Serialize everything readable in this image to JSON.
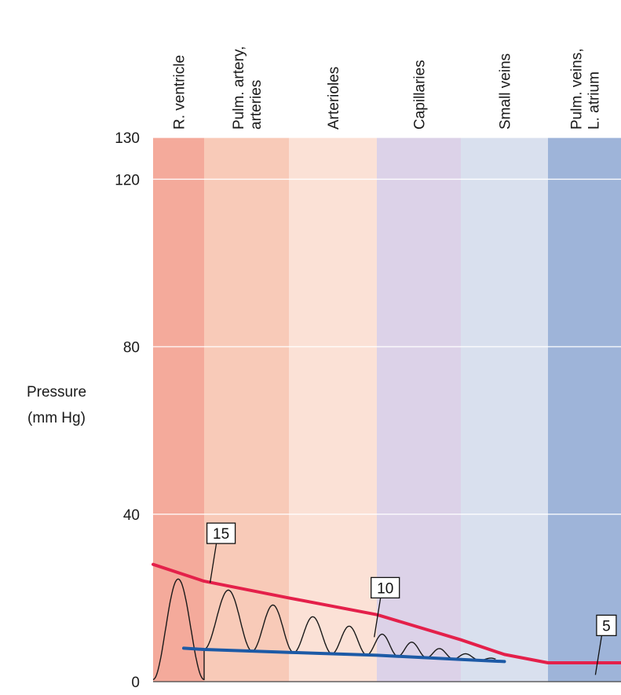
{
  "chart_data": {
    "type": "line",
    "ylabel": "Pressure",
    "ylabel_unit": "(mm Hg)",
    "yticks": [
      0,
      40,
      80,
      120,
      130
    ],
    "ylim": [
      0,
      130
    ],
    "regions": [
      {
        "label": "R. ventricle",
        "color": "#f4aa9b"
      },
      {
        "label": "Pulm. artery,|arteries",
        "color": "#f8cab8"
      },
      {
        "label": "Arterioles",
        "color": "#fbe1d6"
      },
      {
        "label": "Capillaries",
        "color": "#dcd2e8"
      },
      {
        "label": "Small veins",
        "color": "#d9e0ee"
      },
      {
        "label": "Pulm. veins,|L. atrium",
        "color": "#9eb4d9"
      }
    ],
    "series": [
      {
        "color": "#e4204a",
        "x": [
          0,
          1,
          2,
          3,
          4,
          4.5,
          5,
          5.5,
          6
        ],
        "values": [
          28,
          24,
          20,
          16,
          10,
          6.5,
          4.5,
          4.5,
          4.5
        ]
      },
      {
        "color": "#1c5aa6",
        "x": [
          0.6,
          1,
          2,
          3,
          4,
          4.5
        ],
        "values": [
          8,
          7.7,
          7,
          6.3,
          5.3,
          4.8
        ]
      }
    ],
    "annotations": [
      {
        "text": "15",
        "x": 1.2,
        "y": 33
      },
      {
        "text": "10",
        "x": 3.1,
        "y": 20
      },
      {
        "text": "5",
        "x": 5.8,
        "y": 11
      }
    ]
  }
}
